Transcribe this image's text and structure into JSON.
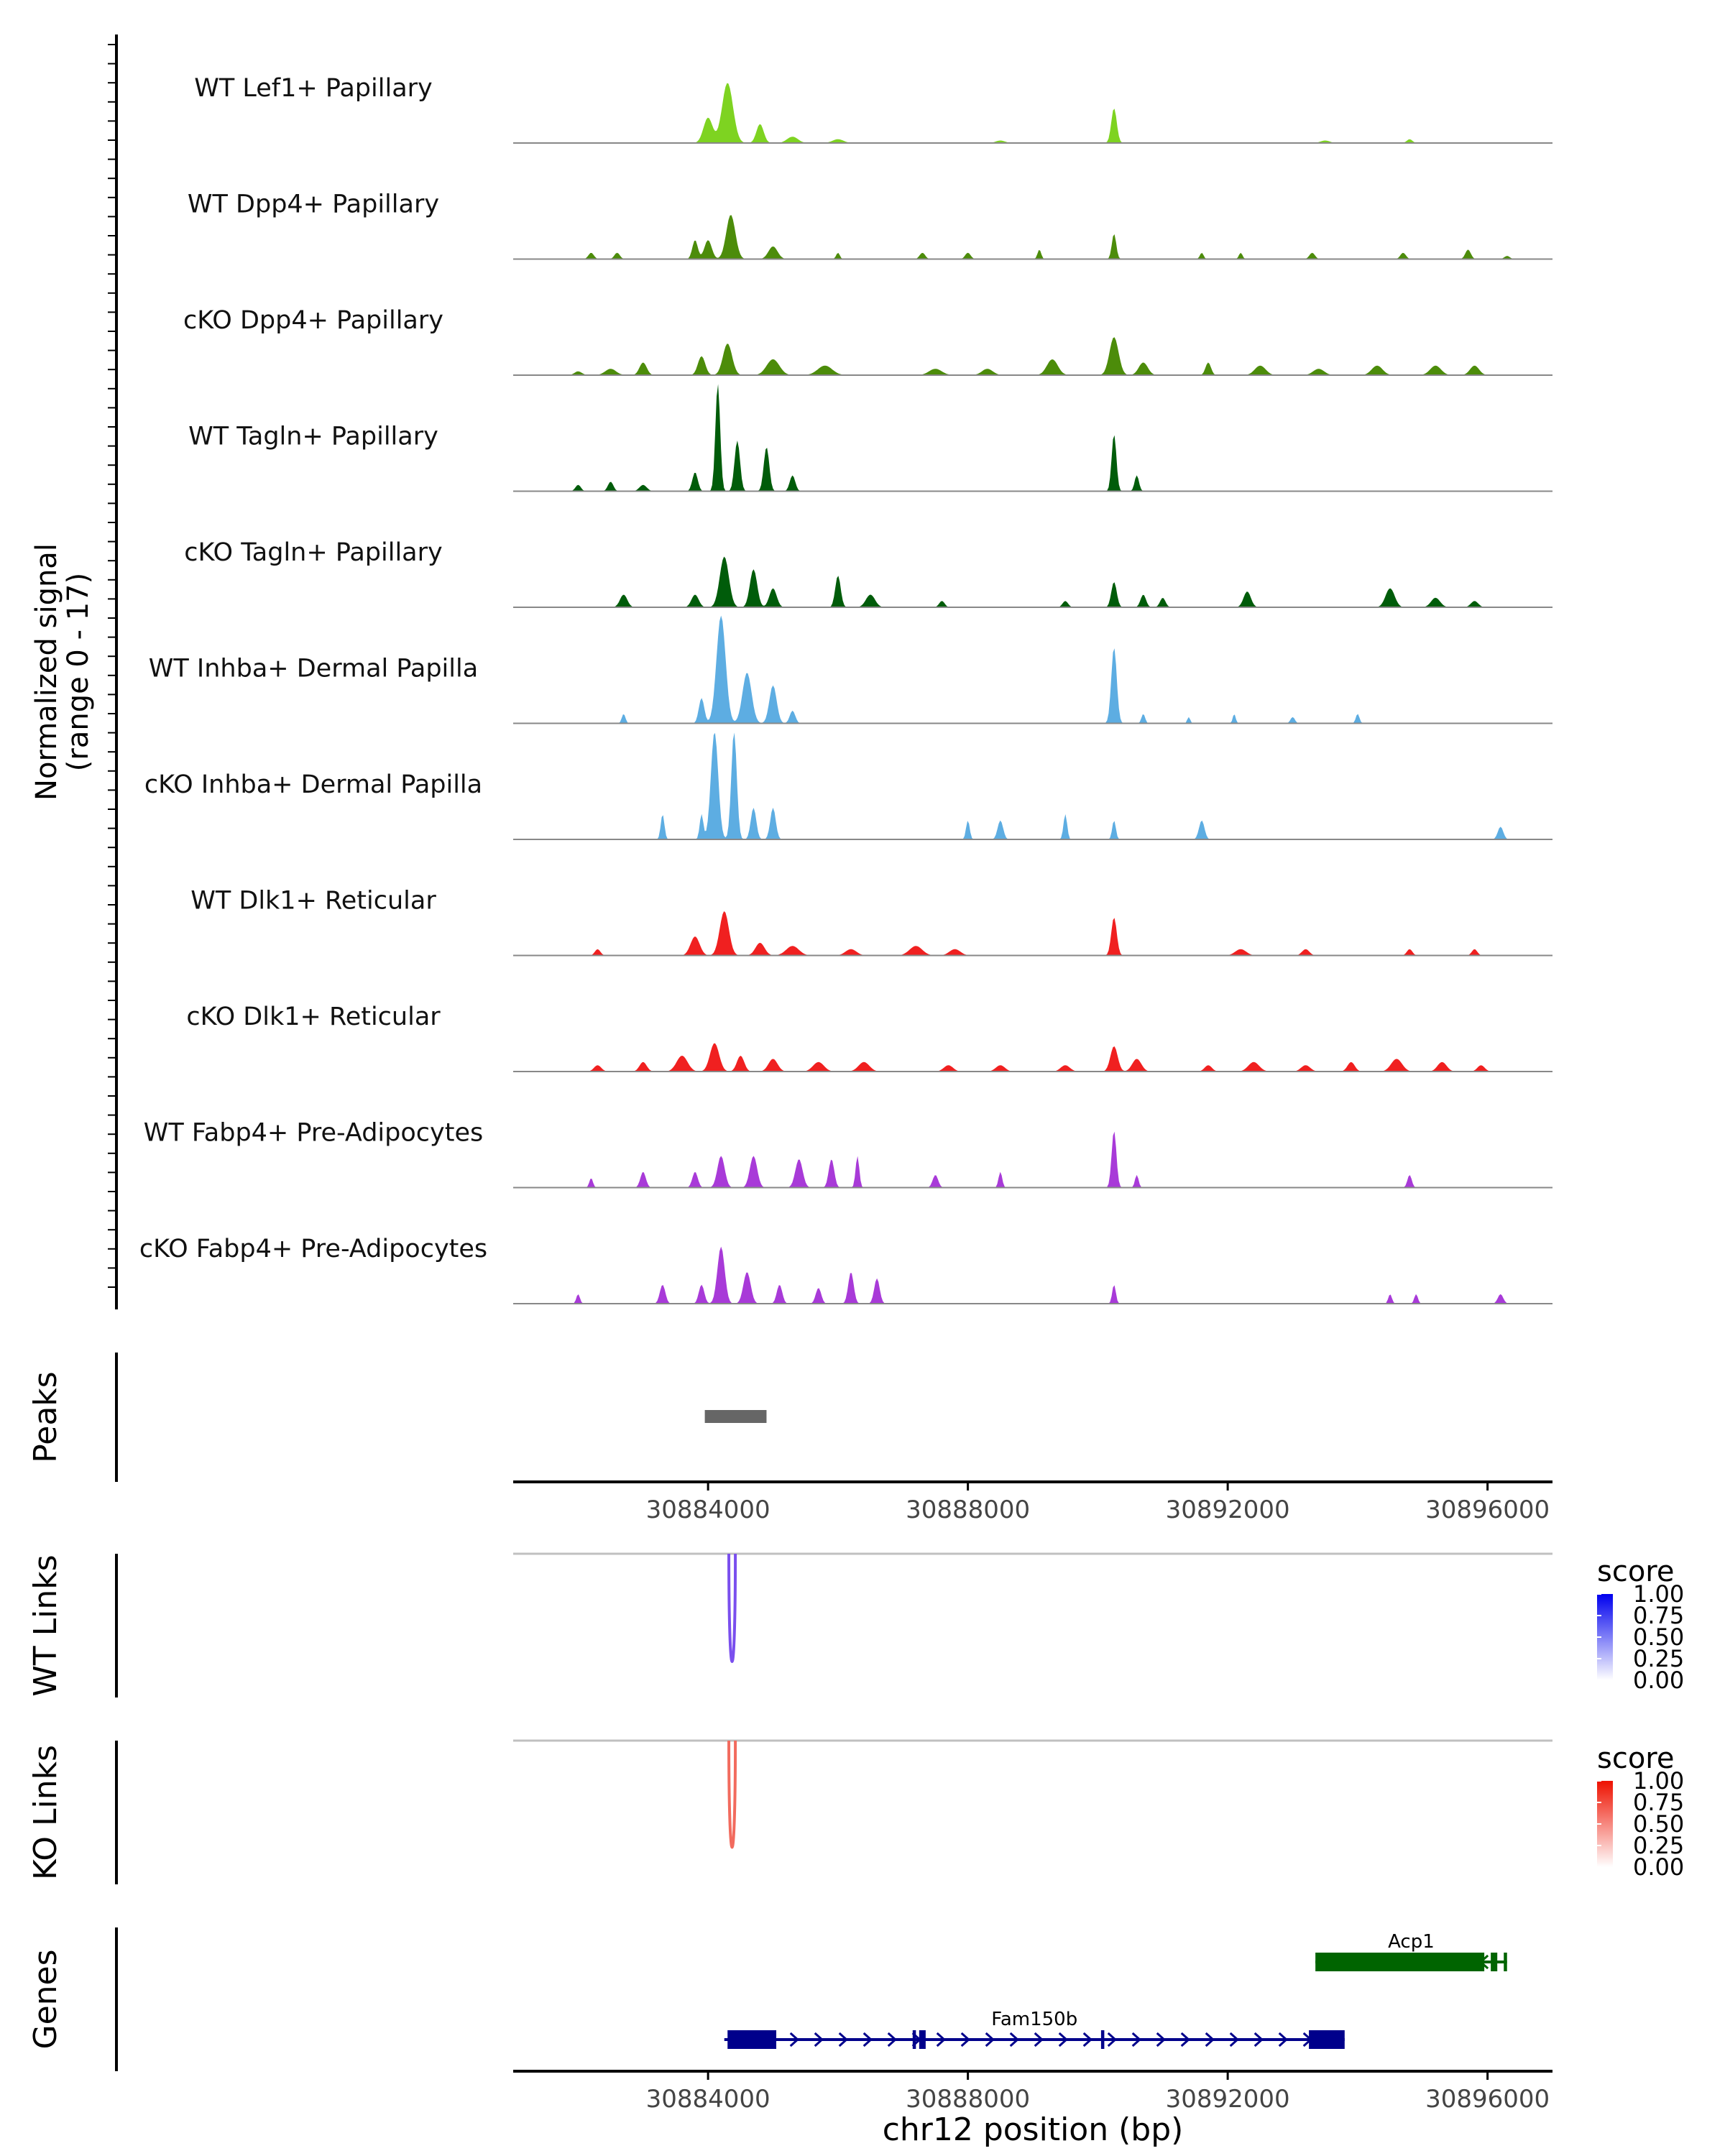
{
  "chart_data": {
    "type": "area",
    "chromosome": "chr12",
    "x_range": [
      30881000,
      30897000
    ],
    "x_ticks": [
      30884000,
      30888000,
      30892000,
      30896000
    ],
    "x_tick_labels": [
      "30884000",
      "30888000",
      "30892000",
      "30896000"
    ],
    "xlabel": "chr12 position (bp)",
    "coverage": {
      "ylabel_line1": "Normalized signal",
      "ylabel_line2": "(range 0 - 17)",
      "y_range": [
        0,
        17
      ],
      "tracks": [
        {
          "name": "WT Lef1+ Papillary",
          "color": "#7ed321",
          "peaks": [
            [
              30884300,
              9.5,
              300
            ],
            [
              30884000,
              4,
              250
            ],
            [
              30884800,
              3,
              200
            ],
            [
              30885300,
              1,
              300
            ],
            [
              30886000,
              0.6,
              300
            ],
            [
              30890250,
              5.5,
              150
            ],
            [
              30888500,
              0.4,
              250
            ],
            [
              30893500,
              0.4,
              250
            ],
            [
              30894800,
              0.6,
              150
            ]
          ]
        },
        {
          "name": "WT Dpp4+ Papillary",
          "color": "#4c8c0a",
          "peaks": [
            [
              30884350,
              7,
              250
            ],
            [
              30883800,
              3,
              150
            ],
            [
              30884000,
              3,
              200
            ],
            [
              30885000,
              2,
              250
            ],
            [
              30882200,
              1,
              150
            ],
            [
              30882600,
              1,
              150
            ],
            [
              30886000,
              1,
              100
            ],
            [
              30887300,
              1,
              150
            ],
            [
              30888000,
              1,
              150
            ],
            [
              30889100,
              1.5,
              100
            ],
            [
              30890250,
              4,
              120
            ],
            [
              30891600,
              1,
              100
            ],
            [
              30892200,
              1,
              100
            ],
            [
              30893300,
              1,
              150
            ],
            [
              30894700,
              1,
              150
            ],
            [
              30895700,
              1.5,
              150
            ],
            [
              30896300,
              0.5,
              150
            ]
          ]
        },
        {
          "name": "cKO Dpp4+ Papillary",
          "color": "#4c8c0a",
          "peaks": [
            [
              30884300,
              5,
              250
            ],
            [
              30883900,
              3,
              200
            ],
            [
              30885000,
              2.5,
              350
            ],
            [
              30885800,
              1.5,
              400
            ],
            [
              30883000,
              2,
              200
            ],
            [
              30882500,
              1,
              300
            ],
            [
              30882000,
              0.6,
              200
            ],
            [
              30887500,
              1,
              350
            ],
            [
              30888300,
              1,
              300
            ],
            [
              30889300,
              2.5,
              300
            ],
            [
              30890250,
              6,
              250
            ],
            [
              30890700,
              2,
              250
            ],
            [
              30891700,
              2,
              150
            ],
            [
              30892500,
              1.5,
              300
            ],
            [
              30893400,
              1,
              300
            ],
            [
              30894300,
              1.5,
              300
            ],
            [
              30895200,
              1.5,
              300
            ],
            [
              30895800,
              1.5,
              250
            ]
          ]
        },
        {
          "name": "WT Tagln+ Papillary",
          "color": "#005c0a",
          "peaks": [
            [
              30884150,
              17,
              130
            ],
            [
              30884450,
              8,
              150
            ],
            [
              30884900,
              7,
              150
            ],
            [
              30883800,
              3,
              150
            ],
            [
              30885300,
              2.5,
              150
            ],
            [
              30882000,
              1,
              150
            ],
            [
              30882500,
              1.5,
              150
            ],
            [
              30883000,
              1,
              200
            ],
            [
              30890250,
              9,
              130
            ],
            [
              30890600,
              2.5,
              120
            ]
          ]
        },
        {
          "name": "cKO Tagln+ Papillary",
          "color": "#005c0a",
          "peaks": [
            [
              30884250,
              8,
              250
            ],
            [
              30884700,
              6,
              200
            ],
            [
              30885000,
              3,
              200
            ],
            [
              30883800,
              2,
              200
            ],
            [
              30882700,
              2,
              200
            ],
            [
              30886000,
              5,
              150
            ],
            [
              30886500,
              2,
              250
            ],
            [
              30887600,
              1,
              150
            ],
            [
              30889500,
              1,
              150
            ],
            [
              30890250,
              4,
              150
            ],
            [
              30890700,
              2,
              150
            ],
            [
              30891000,
              1.5,
              150
            ],
            [
              30892300,
              2.5,
              200
            ],
            [
              30894500,
              3,
              250
            ],
            [
              30895200,
              1.5,
              250
            ],
            [
              30895800,
              1,
              200
            ]
          ]
        },
        {
          "name": "WT Inhba+ Dermal Papilla",
          "color": "#5dade2",
          "peaks": [
            [
              30884200,
              17,
              250
            ],
            [
              30884600,
              8,
              250
            ],
            [
              30885000,
              6,
              200
            ],
            [
              30883900,
              4,
              150
            ],
            [
              30882700,
              1.5,
              100
            ],
            [
              30885300,
              2,
              150
            ],
            [
              30890250,
              12,
              150
            ],
            [
              30890700,
              1.5,
              100
            ],
            [
              30891400,
              1,
              80
            ],
            [
              30892100,
              1.5,
              80
            ],
            [
              30893000,
              1,
              120
            ],
            [
              30894000,
              1.5,
              100
            ]
          ]
        },
        {
          "name": "cKO Inhba+ Dermal Papilla",
          "color": "#5dade2",
          "peaks": [
            [
              30884100,
              17,
              200
            ],
            [
              30884400,
              17,
              150
            ],
            [
              30884700,
              5,
              150
            ],
            [
              30885000,
              5,
              150
            ],
            [
              30883300,
              4,
              100
            ],
            [
              30883900,
              4,
              100
            ],
            [
              30888000,
              3,
              100
            ],
            [
              30888500,
              3,
              150
            ],
            [
              30889500,
              4,
              100
            ],
            [
              30890250,
              3,
              100
            ],
            [
              30891600,
              3,
              150
            ],
            [
              30896200,
              2,
              150
            ]
          ]
        },
        {
          "name": "WT Dlk1+ Reticular",
          "color": "#f02020",
          "peaks": [
            [
              30884250,
              7,
              250
            ],
            [
              30883800,
              3,
              250
            ],
            [
              30884800,
              2,
              250
            ],
            [
              30885300,
              1.5,
              350
            ],
            [
              30882300,
              1,
              150
            ],
            [
              30886200,
              1,
              300
            ],
            [
              30887200,
              1.5,
              350
            ],
            [
              30887800,
              1,
              300
            ],
            [
              30890250,
              6,
              150
            ],
            [
              30892200,
              1,
              300
            ],
            [
              30893200,
              1,
              200
            ],
            [
              30894800,
              1,
              150
            ],
            [
              30895800,
              1,
              150
            ]
          ]
        },
        {
          "name": "cKO Dlk1+ Reticular",
          "color": "#f02020",
          "peaks": [
            [
              30884100,
              4.5,
              250
            ],
            [
              30883600,
              2.5,
              300
            ],
            [
              30884500,
              2.5,
              200
            ],
            [
              30885000,
              2,
              250
            ],
            [
              30882300,
              1,
              200
            ],
            [
              30883000,
              1.5,
              200
            ],
            [
              30885700,
              1.5,
              300
            ],
            [
              30886400,
              1.5,
              300
            ],
            [
              30887700,
              1,
              250
            ],
            [
              30888500,
              1,
              250
            ],
            [
              30889500,
              1,
              250
            ],
            [
              30890250,
              4,
              200
            ],
            [
              30890600,
              2,
              250
            ],
            [
              30891700,
              1,
              200
            ],
            [
              30892400,
              1.5,
              300
            ],
            [
              30893200,
              1,
              250
            ],
            [
              30893900,
              1.5,
              200
            ],
            [
              30894600,
              2,
              300
            ],
            [
              30895300,
              1.5,
              250
            ],
            [
              30895900,
              1,
              200
            ]
          ]
        },
        {
          "name": "WT Fabp4+ Pre-Adipocytes",
          "color": "#a83ad8",
          "peaks": [
            [
              30884200,
              5,
              200
            ],
            [
              30884700,
              5,
              200
            ],
            [
              30885400,
              4.5,
              200
            ],
            [
              30885900,
              4.5,
              150
            ],
            [
              30886300,
              5,
              100
            ],
            [
              30883000,
              2.5,
              150
            ],
            [
              30883800,
              2.5,
              150
            ],
            [
              30882200,
              1.5,
              100
            ],
            [
              30887500,
              2,
              150
            ],
            [
              30888500,
              2.5,
              100
            ],
            [
              30890250,
              9,
              130
            ],
            [
              30890600,
              2,
              100
            ],
            [
              30894800,
              2,
              120
            ]
          ]
        },
        {
          "name": "cKO Fabp4+ Pre-Adipocytes",
          "color": "#a83ad8",
          "peaks": [
            [
              30884200,
              9,
              200
            ],
            [
              30884600,
              5,
              200
            ],
            [
              30883300,
              3,
              150
            ],
            [
              30883900,
              3,
              150
            ],
            [
              30885100,
              3,
              150
            ],
            [
              30885700,
              2.5,
              150
            ],
            [
              30886200,
              5,
              150
            ],
            [
              30886600,
              4,
              150
            ],
            [
              30882000,
              1.5,
              100
            ],
            [
              30890250,
              3,
              100
            ],
            [
              30894500,
              1.5,
              100
            ],
            [
              30894900,
              1.5,
              100
            ],
            [
              30896200,
              1.5,
              150
            ]
          ]
        }
      ]
    },
    "peaks_track": {
      "label": "Peaks",
      "color": "#666666",
      "regions": [
        [
          30883950,
          30884900
        ]
      ]
    },
    "link_tracks": [
      {
        "label": "WT Links",
        "legend_title": "score",
        "color_high": "#0000ee",
        "color_low": "#ffffff",
        "legend_ticks": [
          "1.00",
          "0.75",
          "0.50",
          "0.25",
          "0.00"
        ],
        "links": [
          {
            "start": 30884320,
            "end": 30884420,
            "score": 0.7,
            "color": "#7a4fee"
          }
        ]
      },
      {
        "label": "KO Links",
        "legend_title": "score",
        "color_high": "#ee1100",
        "color_low": "#ffffff",
        "legend_ticks": [
          "1.00",
          "0.75",
          "0.50",
          "0.25",
          "0.00"
        ],
        "links": [
          {
            "start": 30884320,
            "end": 30884420,
            "score": 0.6,
            "color": "#f26b5e"
          }
        ]
      }
    ],
    "genes_track": {
      "label": "Genes",
      "genes": [
        {
          "name": "Acp1",
          "strand": "-",
          "color": "#006400",
          "start": 30893350,
          "end": 30896300,
          "exons": [
            [
              30893350,
              30895950
            ],
            [
              30896050,
              30896150
            ],
            [
              30896250,
              30896300
            ]
          ]
        },
        {
          "name": "Fam150b",
          "strand": "+",
          "color": "#00008b",
          "start": 30884250,
          "end": 30893800,
          "exons": [
            [
              30884300,
              30885050
            ],
            [
              30887150,
              30887200
            ],
            [
              30887250,
              30887350
            ],
            [
              30890050,
              30890100
            ],
            [
              30893250,
              30893800
            ]
          ]
        }
      ]
    }
  }
}
